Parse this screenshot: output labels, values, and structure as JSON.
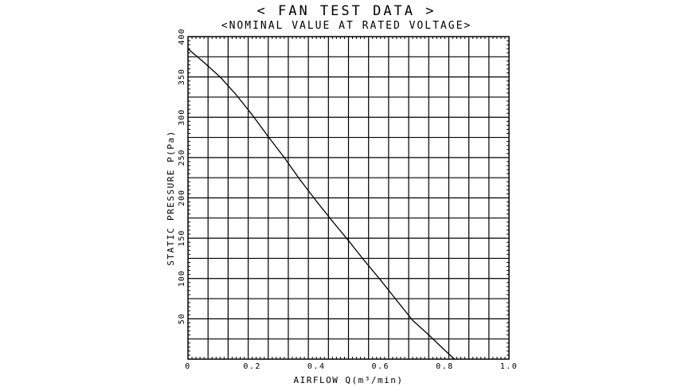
{
  "chart_data": {
    "type": "line",
    "title": "< FAN TEST DATA >",
    "subtitle": "<NOMINAL VALUE AT RATED VOLTAGE>",
    "xlabel": "AIRFLOW Q(m³/min)",
    "ylabel": "STATIC PRESSURE P(Pa)",
    "xlim": [
      0,
      1.0
    ],
    "ylim": [
      0,
      400
    ],
    "x_ticks": [
      0,
      0.2,
      0.4,
      0.6,
      0.8,
      1.0
    ],
    "x_tick_labels": [
      "0",
      "0.2",
      "0.4",
      "0.6",
      "0.8",
      "1.0"
    ],
    "y_ticks": [
      50,
      100,
      150,
      200,
      250,
      300,
      350,
      400
    ],
    "y_tick_labels": [
      "50",
      "100",
      "150",
      "200",
      "250",
      "300",
      "350",
      "400"
    ],
    "grid": true,
    "series": [
      {
        "x": [
          0,
          0.05,
          0.1,
          0.15,
          0.2,
          0.25,
          0.3,
          0.35,
          0.4,
          0.45,
          0.5,
          0.55,
          0.6,
          0.65,
          0.7,
          0.75,
          0.8,
          0.83
        ],
        "y": [
          385,
          368,
          350,
          328,
          303,
          276,
          250,
          222,
          196,
          171,
          147,
          122,
          98,
          73,
          48,
          30,
          11,
          0
        ]
      }
    ]
  }
}
